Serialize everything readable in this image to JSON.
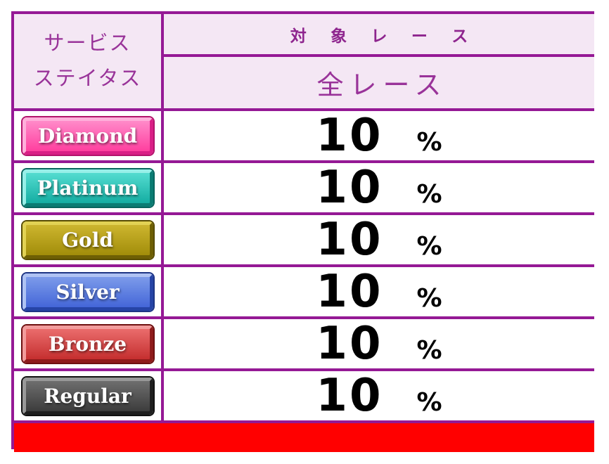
{
  "chart_data": {
    "type": "table",
    "title": "",
    "columns": [
      "サービスステイタス",
      "対象レース：全レース"
    ],
    "rows": [
      {
        "tier": "Diamond",
        "rate_percent": 10
      },
      {
        "tier": "Platinum",
        "rate_percent": 10
      },
      {
        "tier": "Gold",
        "rate_percent": 10
      },
      {
        "tier": "Silver",
        "rate_percent": 10
      },
      {
        "tier": "Bronze",
        "rate_percent": 10
      },
      {
        "tier": "Regular",
        "rate_percent": 10
      }
    ]
  },
  "table": {
    "border_color": "#951995",
    "header": {
      "service_status_line1": "サービス",
      "service_status_line2": "ステイタス",
      "target_race": "対 象 レ ー ス",
      "all_races": "全レース",
      "header_bg": "#F4E7F4",
      "text_color": "#993399"
    },
    "rows": [
      {
        "tier": "Diamond",
        "value": "10",
        "unit": "%",
        "badge_color": "#FF4FA8"
      },
      {
        "tier": "Platinum",
        "value": "10",
        "unit": "%",
        "badge_color": "#2BC8BC"
      },
      {
        "tier": "Gold",
        "value": "10",
        "unit": "%",
        "badge_color": "#BCA410"
      },
      {
        "tier": "Silver",
        "value": "10",
        "unit": "%",
        "badge_color": "#5478DF"
      },
      {
        "tier": "Bronze",
        "value": "10",
        "unit": "%",
        "badge_color": "#D94343"
      },
      {
        "tier": "Regular",
        "value": "10",
        "unit": "%",
        "badge_color": "#4B4B4B"
      }
    ],
    "footer": {
      "color": "#FF0000"
    }
  }
}
